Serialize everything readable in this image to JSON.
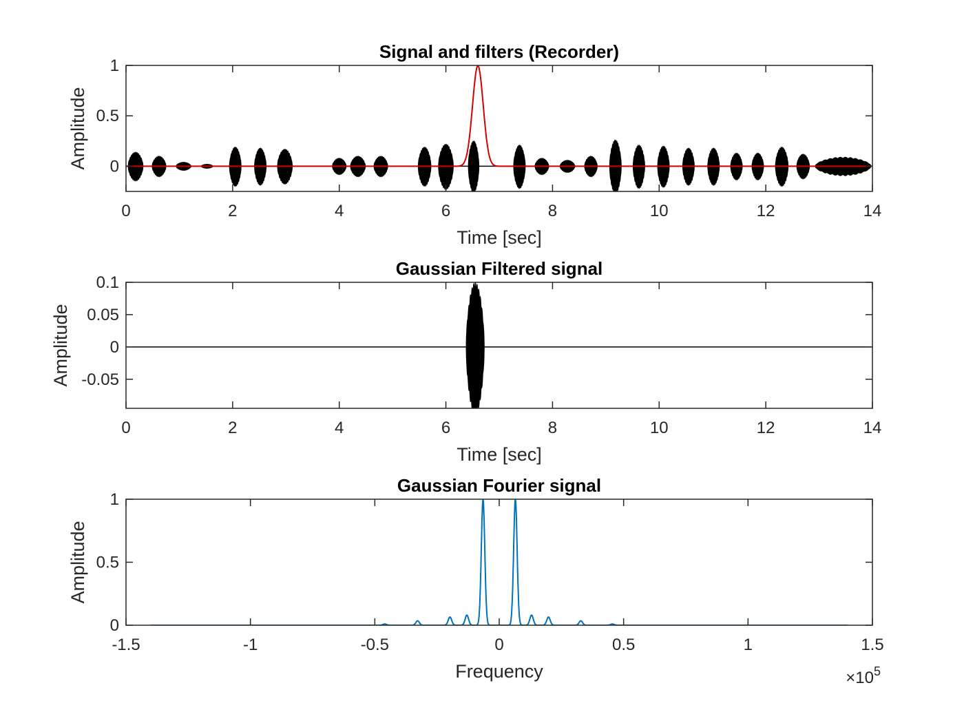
{
  "chart_data": [
    {
      "type": "line",
      "title": "Signal and filters (Recorder)",
      "xlabel": "Time [sec]",
      "ylabel": "Amplitude",
      "xlim": [
        0,
        14
      ],
      "ylim": [
        -0.25,
        1
      ],
      "xticks": [
        "0",
        "2",
        "4",
        "6",
        "8",
        "10",
        "12",
        "14"
      ],
      "yticks": [
        "0",
        "0.5",
        "1"
      ],
      "grid": false,
      "series": [
        {
          "kind": "envelope",
          "color": "#000000",
          "bursts": [
            {
              "t": 0.18,
              "w": 0.28,
              "a": 0.14
            },
            {
              "t": 0.62,
              "w": 0.26,
              "a": 0.1
            },
            {
              "t": 1.08,
              "w": 0.28,
              "a": 0.04
            },
            {
              "t": 1.52,
              "w": 0.22,
              "a": 0.02
            },
            {
              "t": 2.05,
              "w": 0.22,
              "a": 0.19
            },
            {
              "t": 2.52,
              "w": 0.22,
              "a": 0.18
            },
            {
              "t": 2.98,
              "w": 0.28,
              "a": 0.17
            },
            {
              "t": 4.0,
              "w": 0.26,
              "a": 0.08
            },
            {
              "t": 4.35,
              "w": 0.28,
              "a": 0.1
            },
            {
              "t": 4.78,
              "w": 0.26,
              "a": 0.1
            },
            {
              "t": 5.6,
              "w": 0.24,
              "a": 0.19
            },
            {
              "t": 6.0,
              "w": 0.28,
              "a": 0.22
            },
            {
              "t": 6.52,
              "w": 0.2,
              "a": 0.25
            },
            {
              "t": 7.38,
              "w": 0.22,
              "a": 0.21
            },
            {
              "t": 7.8,
              "w": 0.26,
              "a": 0.08
            },
            {
              "t": 8.28,
              "w": 0.28,
              "a": 0.06
            },
            {
              "t": 8.72,
              "w": 0.24,
              "a": 0.1
            },
            {
              "t": 9.18,
              "w": 0.22,
              "a": 0.26
            },
            {
              "t": 9.62,
              "w": 0.22,
              "a": 0.21
            },
            {
              "t": 10.08,
              "w": 0.22,
              "a": 0.2
            },
            {
              "t": 10.55,
              "w": 0.22,
              "a": 0.18
            },
            {
              "t": 11.02,
              "w": 0.22,
              "a": 0.18
            },
            {
              "t": 11.45,
              "w": 0.22,
              "a": 0.13
            },
            {
              "t": 11.85,
              "w": 0.22,
              "a": 0.13
            },
            {
              "t": 12.3,
              "w": 0.24,
              "a": 0.19
            },
            {
              "t": 12.7,
              "w": 0.24,
              "a": 0.12
            },
            {
              "t": 13.45,
              "w": 1.05,
              "a": 0.09
            }
          ]
        },
        {
          "kind": "gaussian",
          "color": "#d40000",
          "center": 6.6,
          "sigma": 0.1,
          "amplitude": 1
        }
      ]
    },
    {
      "type": "line",
      "title": "Gaussian Filtered signal",
      "xlabel": "Time [sec]",
      "ylabel": "Amplitude",
      "xlim": [
        0,
        14
      ],
      "ylim": [
        -0.095,
        0.1
      ],
      "xticks": [
        "0",
        "2",
        "4",
        "6",
        "8",
        "10",
        "12",
        "14"
      ],
      "yticks": [
        "-0.05",
        "0",
        "0.05",
        "0.1"
      ],
      "grid": false,
      "series": [
        {
          "kind": "envelope",
          "color": "#000000",
          "bursts": [
            {
              "t": 6.55,
              "w": 0.34,
              "a": 0.1
            }
          ]
        }
      ]
    },
    {
      "type": "line",
      "title": "Gaussian Fourier signal",
      "xlabel": "Frequency",
      "ylabel": "Amplitude",
      "xlim": [
        -150000,
        150000
      ],
      "ylim": [
        0,
        1
      ],
      "xticks": [
        "-1.5",
        "-1",
        "-0.5",
        "0",
        "0.5",
        "1",
        "1.5"
      ],
      "yticks": [
        "0",
        "0.5",
        "1"
      ],
      "x_exponent": "10",
      "x_exponent_power": "5",
      "grid": false,
      "series": [
        {
          "kind": "spectrum",
          "color": "#0072bd",
          "range": [
            -140000,
            140000
          ],
          "peaks": [
            {
              "f": -6500,
              "a": 1.0
            },
            {
              "f": 6500,
              "a": 1.0
            },
            {
              "f": -13000,
              "a": 0.08
            },
            {
              "f": 13000,
              "a": 0.08
            },
            {
              "f": -19800,
              "a": 0.065
            },
            {
              "f": 19800,
              "a": 0.065
            },
            {
              "f": -32800,
              "a": 0.035
            },
            {
              "f": 32800,
              "a": 0.035
            },
            {
              "f": -46000,
              "a": 0.01
            },
            {
              "f": 45500,
              "a": 0.01
            }
          ]
        }
      ]
    }
  ]
}
